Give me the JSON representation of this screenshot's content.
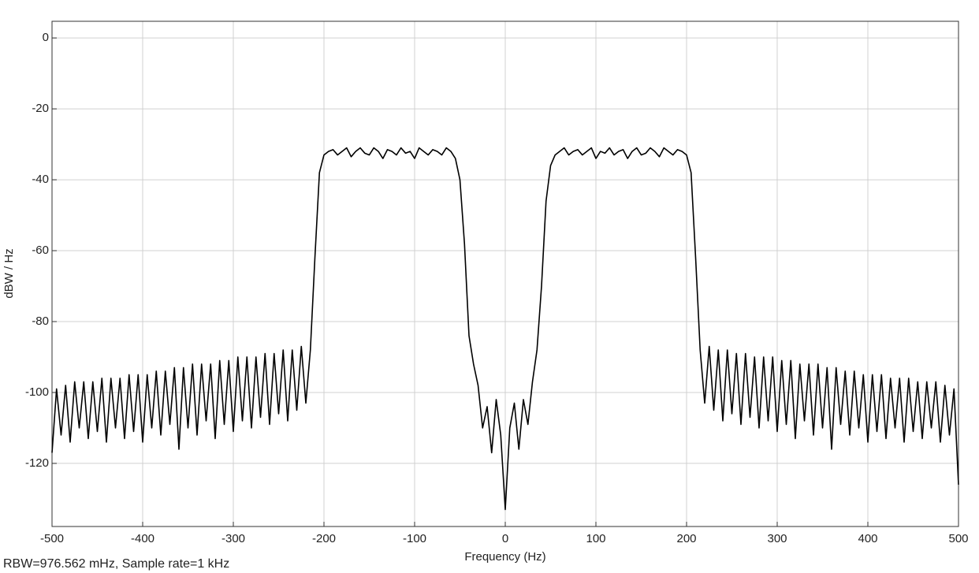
{
  "chart_data": {
    "type": "line",
    "xlabel": "Frequency (Hz)",
    "ylabel": "dBW / Hz",
    "annotation": "RBW=976.562 mHz, Sample rate=1 kHz",
    "xlim": [
      -500,
      500
    ],
    "ylim": [
      -137.8,
      4.7
    ],
    "xticks": [
      -500,
      -400,
      -300,
      -200,
      -100,
      0,
      100,
      200,
      300,
      400,
      500
    ],
    "yticks": [
      -120,
      -100,
      -80,
      -60,
      -40,
      -20,
      0
    ],
    "grid": true,
    "x": [
      -500,
      -495,
      -490,
      -485,
      -480,
      -475,
      -470,
      -465,
      -460,
      -455,
      -450,
      -445,
      -440,
      -435,
      -430,
      -425,
      -420,
      -415,
      -410,
      -405,
      -400,
      -395,
      -390,
      -385,
      -380,
      -375,
      -370,
      -365,
      -360,
      -355,
      -350,
      -345,
      -340,
      -335,
      -330,
      -325,
      -320,
      -315,
      -310,
      -305,
      -300,
      -295,
      -290,
      -285,
      -280,
      -275,
      -270,
      -265,
      -260,
      -255,
      -250,
      -245,
      -240,
      -235,
      -230,
      -225,
      -220,
      -215,
      -210,
      -205,
      -200,
      -195,
      -190,
      -185,
      -180,
      -175,
      -170,
      -165,
      -160,
      -155,
      -150,
      -145,
      -140,
      -135,
      -130,
      -125,
      -120,
      -115,
      -110,
      -105,
      -100,
      -95,
      -90,
      -85,
      -80,
      -75,
      -70,
      -65,
      -60,
      -55,
      -50,
      -45,
      -40,
      -35,
      -30,
      -25,
      -20,
      -15,
      -10,
      -5,
      0,
      5,
      10,
      15,
      20,
      25,
      30,
      35,
      40,
      45,
      50,
      55,
      60,
      65,
      70,
      75,
      80,
      85,
      90,
      95,
      100,
      105,
      110,
      115,
      120,
      125,
      130,
      135,
      140,
      145,
      150,
      155,
      160,
      165,
      170,
      175,
      180,
      185,
      190,
      195,
      200,
      205,
      210,
      215,
      220,
      225,
      230,
      235,
      240,
      245,
      250,
      255,
      260,
      265,
      270,
      275,
      280,
      285,
      290,
      295,
      300,
      305,
      310,
      315,
      320,
      325,
      330,
      335,
      340,
      345,
      350,
      355,
      360,
      365,
      370,
      375,
      380,
      385,
      390,
      395,
      400,
      405,
      410,
      415,
      420,
      425,
      430,
      435,
      440,
      445,
      450,
      455,
      460,
      465,
      470,
      475,
      480,
      485,
      490,
      495,
      500
    ],
    "series": [
      {
        "color": "#000000",
        "values": [
          -117,
          -99,
          -112,
          -98,
          -114,
          -97,
          -110,
          -97,
          -113,
          -97,
          -111,
          -96,
          -114,
          -96,
          -110,
          -96,
          -113,
          -95,
          -111,
          -95,
          -114,
          -95,
          -110,
          -94,
          -112,
          -94,
          -109,
          -93,
          -116,
          -93,
          -110,
          -92,
          -112,
          -92,
          -108,
          -92,
          -113,
          -91,
          -109,
          -91,
          -111,
          -90,
          -108,
          -90,
          -110,
          -90,
          -107,
          -89,
          -109,
          -89,
          -106,
          -88,
          -108,
          -88,
          -105,
          -87,
          -103,
          -88,
          -62,
          -38,
          -33,
          -32,
          -31.5,
          -33,
          -32,
          -31,
          -33.5,
          -32,
          -31,
          -32.5,
          -33,
          -31,
          -32,
          -34,
          -31.5,
          -32,
          -33,
          -31,
          -32.5,
          -32,
          -34,
          -31,
          -32,
          -33,
          -31.5,
          -32,
          -33,
          -31,
          -32,
          -34,
          -40,
          -58,
          -84,
          -92,
          -98,
          -110,
          -104,
          -117,
          -102,
          -112,
          -133,
          -110,
          -103,
          -116,
          -102,
          -109,
          -97,
          -88,
          -70,
          -46,
          -36,
          -33,
          -32,
          -31,
          -33,
          -32,
          -31.5,
          -33,
          -32,
          -31,
          -34,
          -32,
          -32.5,
          -31,
          -33,
          -32,
          -31.5,
          -34,
          -32,
          -31,
          -33,
          -32.5,
          -31,
          -32,
          -33.5,
          -31,
          -32,
          -33,
          -31.5,
          -32,
          -33,
          -38,
          -62,
          -88,
          -103,
          -87,
          -105,
          -88,
          -108,
          -88,
          -106,
          -89,
          -109,
          -89,
          -107,
          -90,
          -110,
          -90,
          -108,
          -90,
          -111,
          -91,
          -109,
          -91,
          -113,
          -92,
          -108,
          -92,
          -112,
          -92,
          -110,
          -93,
          -116,
          -93,
          -109,
          -94,
          -112,
          -94,
          -110,
          -95,
          -114,
          -95,
          -111,
          -95,
          -113,
          -96,
          -110,
          -96,
          -114,
          -96,
          -111,
          -97,
          -113,
          -97,
          -110,
          -97,
          -114,
          -98,
          -112,
          -99,
          -126
        ]
      }
    ]
  }
}
